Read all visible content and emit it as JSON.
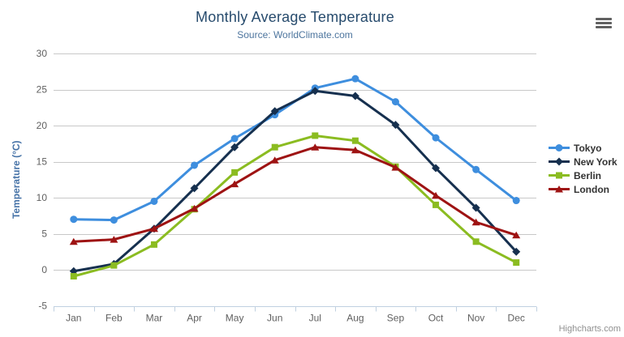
{
  "header": {
    "title": "Monthly Average Temperature",
    "subtitle": "Source: WorldClimate.com"
  },
  "context_menu": {
    "icon": "hamburger-icon"
  },
  "credits": {
    "label": "Highcharts.com"
  },
  "chart_data": {
    "type": "line",
    "title": "Monthly Average Temperature",
    "subtitle": "Source: WorldClimate.com",
    "xlabel": "",
    "ylabel": "Temperature (°C)",
    "ylim": [
      -5,
      30
    ],
    "yticks": [
      30,
      25,
      20,
      15,
      10,
      5,
      0,
      -5
    ],
    "grid": true,
    "legend_position": "right",
    "categories": [
      "Jan",
      "Feb",
      "Mar",
      "Apr",
      "May",
      "Jun",
      "Jul",
      "Aug",
      "Sep",
      "Oct",
      "Nov",
      "Dec"
    ],
    "series": [
      {
        "name": "Tokyo",
        "marker": "circle",
        "color": "#3e8ede",
        "values": [
          7.0,
          6.9,
          9.5,
          14.5,
          18.2,
          21.5,
          25.2,
          26.5,
          23.3,
          18.3,
          13.9,
          9.6
        ]
      },
      {
        "name": "New York",
        "marker": "diamond",
        "color": "#16304f",
        "values": [
          -0.2,
          0.8,
          5.7,
          11.3,
          17.0,
          22.0,
          24.8,
          24.1,
          20.1,
          14.1,
          8.6,
          2.5
        ]
      },
      {
        "name": "Berlin",
        "marker": "square",
        "color": "#8bbc21",
        "values": [
          -0.9,
          0.6,
          3.5,
          8.4,
          13.5,
          17.0,
          18.6,
          17.9,
          14.3,
          9.0,
          3.9,
          1.0
        ]
      },
      {
        "name": "London",
        "marker": "triangle",
        "color": "#9e1313",
        "values": [
          3.9,
          4.2,
          5.7,
          8.5,
          11.9,
          15.2,
          17.0,
          16.6,
          14.2,
          10.3,
          6.6,
          4.8
        ]
      }
    ],
    "axis_colors": {
      "grid_line": "#c8c8c8",
      "axis_line": "#c0d0e0",
      "tick_label": "#606060",
      "y_axis_title": "#4572a7"
    }
  }
}
